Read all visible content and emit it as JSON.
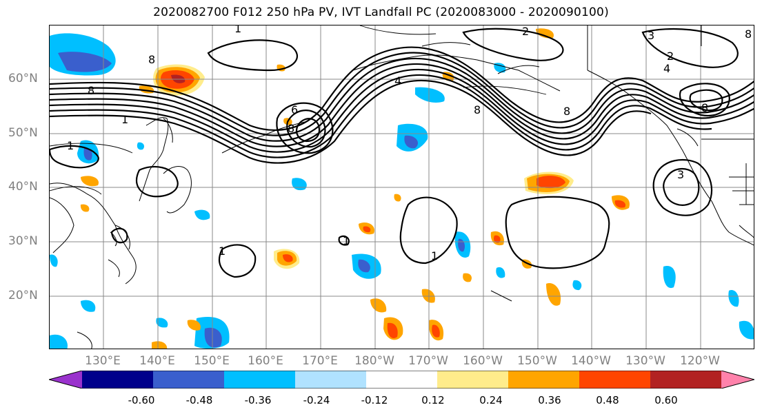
{
  "title": "2020082700 F012 250 hPa PV, IVT Landfall PC (2020083000 - 2020090100)",
  "map": {
    "lat_labels": [
      "60°N",
      "50°N",
      "40°N",
      "30°N",
      "20°N"
    ],
    "lon_labels": [
      "130°E",
      "140°E",
      "150°E",
      "160°E",
      "170°E",
      "180°W",
      "170°W",
      "160°W",
      "150°W",
      "140°W",
      "130°W",
      "120°W"
    ]
  },
  "colorbar": {
    "colors": [
      "#9a32cd",
      "#00008b",
      "#3a5fcd",
      "#00bfff",
      "#b0e2ff",
      "#ffffff",
      "#ffec8b",
      "#ffa500",
      "#ff4500",
      "#b22222",
      "#ff82ab"
    ],
    "tick_labels": [
      "-0.60",
      "-0.48",
      "-0.36",
      "-0.24",
      "-0.12",
      "0.12",
      "0.24",
      "0.36",
      "0.48",
      "0.60"
    ],
    "extend": "both"
  },
  "contour_labels": {
    "l1": "1",
    "l2": "2",
    "l3": "3",
    "l4": "4",
    "l6": "6",
    "l8": "8"
  }
}
